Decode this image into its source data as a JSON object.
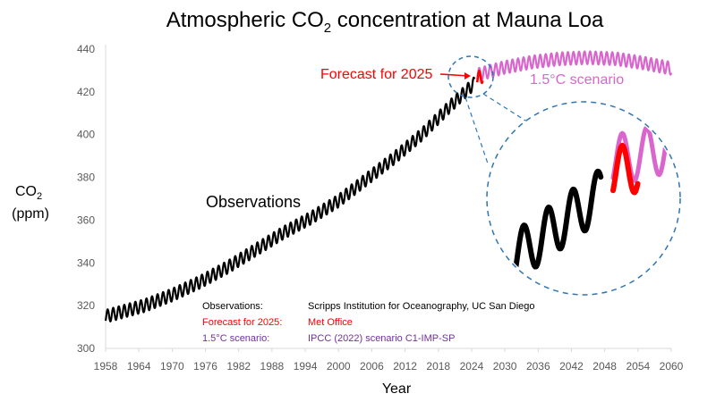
{
  "chart_data": {
    "type": "line",
    "title": {
      "main": "Atmospheric CO",
      "sub": "2",
      "rest": " concentration at Mauna Loa"
    },
    "xlabel": "Year",
    "ylabel": {
      "line1_main": "CO",
      "line1_sub": "2",
      "line2": "(ppm)"
    },
    "xlim": [
      1958,
      2060
    ],
    "ylim": [
      300,
      440
    ],
    "x_ticks": [
      "1958",
      "1964",
      "1970",
      "1976",
      "1982",
      "1988",
      "1994",
      "2000",
      "2006",
      "2012",
      "2018",
      "2024",
      "2030",
      "2036",
      "2042",
      "2048",
      "2054",
      "2060"
    ],
    "y_ticks": [
      "300",
      "320",
      "340",
      "360",
      "380",
      "400",
      "420",
      "440"
    ],
    "grid": false,
    "series": [
      {
        "name": "Observations",
        "color": "#000000",
        "x": [
          1958,
          1965,
          1970,
          1975,
          1980,
          1985,
          1990,
          1995,
          2000,
          2005,
          2010,
          2015,
          2020,
          2024.5
        ],
        "y": [
          315,
          320,
          325,
          331,
          338,
          346,
          354,
          361,
          369,
          379,
          389,
          400,
          413,
          424
        ],
        "seasonal_amplitude_ppm": 3
      },
      {
        "name": "Forecast for 2025",
        "color": "#ff0000",
        "x": [
          2025,
          2026
        ],
        "y": [
          426.5,
          427.3
        ],
        "seasonal_amplitude_ppm": 3
      },
      {
        "name": "1.5°C scenario",
        "color": "#d966cc",
        "x": [
          2025,
          2030,
          2035,
          2040,
          2045,
          2050,
          2055,
          2060
        ],
        "y": [
          428,
          431.5,
          434,
          435.5,
          436,
          435.5,
          433.5,
          431
        ],
        "seasonal_amplitude_ppm": 3
      }
    ],
    "annotations": {
      "observations_label": "Observations",
      "forecast_label": "Forecast for 2025",
      "scenario_label": "1.5°C scenario"
    },
    "sources": [
      {
        "label": "Observations:",
        "value": "Scripps Institution for Oceanography, UC San Diego",
        "color": "#000000"
      },
      {
        "label": "Forecast for 2025:",
        "value": "Met Office",
        "color": "#ff0000"
      },
      {
        "label": "1.5°C scenario:",
        "value": "IPCC (2022) scenario C1-IMP-SP",
        "color": "#7030a0"
      }
    ],
    "inset": {
      "description_colors": {
        "zoom_circle": "#2e75b6"
      }
    }
  }
}
